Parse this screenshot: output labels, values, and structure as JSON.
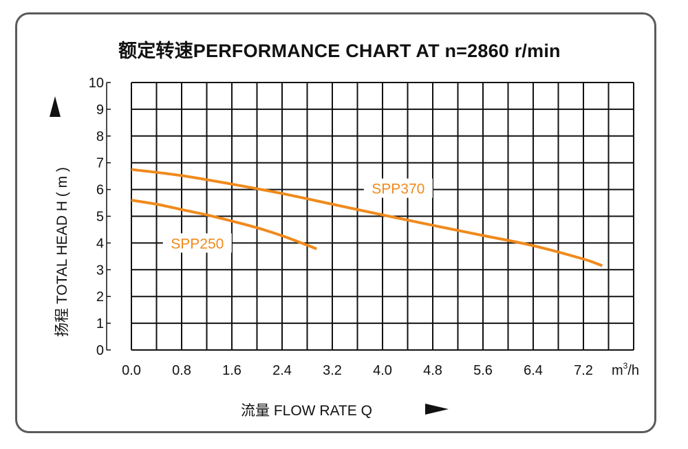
{
  "title": "额定转速PERFORMANCE CHART AT  n=2860 r/min",
  "chart_data": {
    "type": "line",
    "title": "额定转速PERFORMANCE CHART AT  n=2860 r/min",
    "xlabel": "流量 FLOW RATE Q",
    "ylabel": "扬程 TOTAL HEAD H ( m )",
    "x_unit_base": "m",
    "x_unit_sup": "3",
    "x_unit_tail": "/h",
    "xlim": [
      0.0,
      8.0
    ],
    "ylim": [
      0,
      10
    ],
    "x_ticks": [
      "0.0",
      "0.8",
      "1.6",
      "2.4",
      "3.2",
      "4.0",
      "4.8",
      "5.6",
      "6.4",
      "7.2"
    ],
    "y_ticks": [
      "0",
      "1",
      "2",
      "3",
      "4",
      "5",
      "6",
      "7",
      "8",
      "9",
      "10"
    ],
    "grid": true,
    "series": [
      {
        "name": "SPP250",
        "color": "#f08a1c",
        "x": [
          0.0,
          0.4,
          0.8,
          1.2,
          1.6,
          2.0,
          2.4,
          2.8,
          2.95
        ],
        "y": [
          5.6,
          5.45,
          5.25,
          5.05,
          4.82,
          4.57,
          4.27,
          3.92,
          3.78
        ]
      },
      {
        "name": "SPP370",
        "color": "#f08a1c",
        "x": [
          0.0,
          0.8,
          1.6,
          2.4,
          3.2,
          4.0,
          4.8,
          5.6,
          6.4,
          7.2,
          7.5
        ],
        "y": [
          6.75,
          6.52,
          6.2,
          5.85,
          5.45,
          5.05,
          4.66,
          4.28,
          3.9,
          3.4,
          3.15
        ]
      }
    ]
  }
}
